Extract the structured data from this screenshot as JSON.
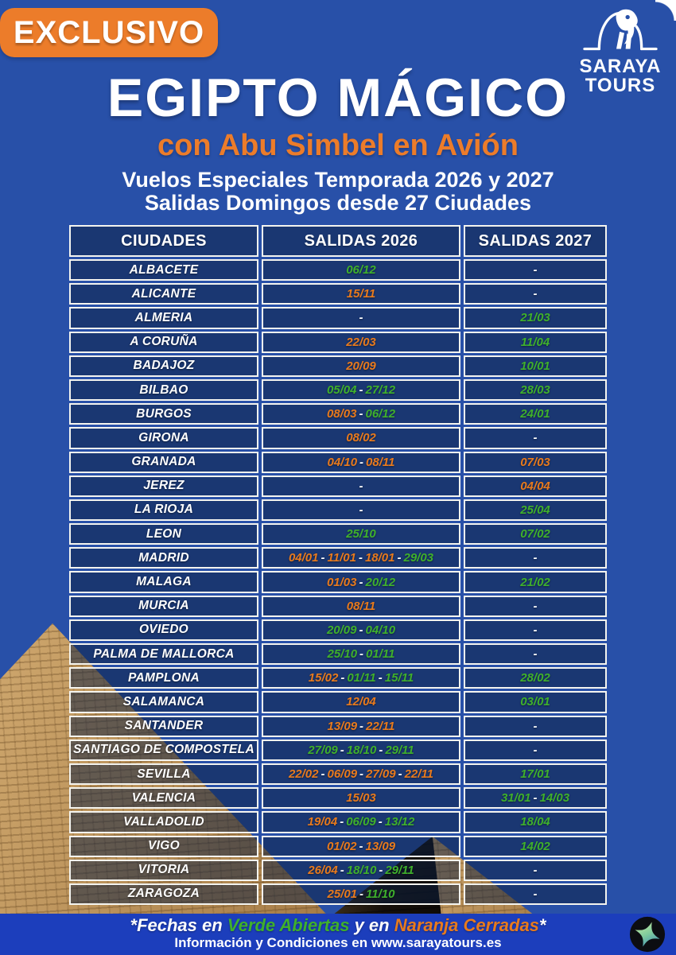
{
  "badge": {
    "label": "EXCLUSIVO"
  },
  "logo": {
    "line1": "SARAYA",
    "line2": "TOURS"
  },
  "header": {
    "title": "EGIPTO MÁGICO",
    "subtitle": "con Abu Simbel en Avión",
    "season_line": "Vuelos Especiales Temporada 2026 y 2027",
    "departures_line": "Salidas Domingos desde 27 Ciudades"
  },
  "table": {
    "columns": [
      "CIUDADES",
      "SALIDAS 2026",
      "SALIDAS 2027"
    ],
    "empty_marker": "-",
    "rows": [
      {
        "city": "ALBACETE",
        "salidas_2026": [
          {
            "date": "06/12",
            "status": "open"
          }
        ],
        "salidas_2027": []
      },
      {
        "city": "ALICANTE",
        "salidas_2026": [
          {
            "date": "15/11",
            "status": "closed"
          }
        ],
        "salidas_2027": []
      },
      {
        "city": "ALMERIA",
        "salidas_2026": [],
        "salidas_2027": [
          {
            "date": "21/03",
            "status": "open"
          }
        ]
      },
      {
        "city": "A CORUÑA",
        "salidas_2026": [
          {
            "date": "22/03",
            "status": "closed"
          }
        ],
        "salidas_2027": [
          {
            "date": "11/04",
            "status": "open"
          }
        ]
      },
      {
        "city": "BADAJOZ",
        "salidas_2026": [
          {
            "date": "20/09",
            "status": "closed"
          }
        ],
        "salidas_2027": [
          {
            "date": "10/01",
            "status": "open"
          }
        ]
      },
      {
        "city": "BILBAO",
        "salidas_2026": [
          {
            "date": "05/04",
            "status": "open"
          },
          {
            "date": "27/12",
            "status": "open"
          }
        ],
        "salidas_2027": [
          {
            "date": "28/03",
            "status": "open"
          }
        ]
      },
      {
        "city": "BURGOS",
        "salidas_2026": [
          {
            "date": "08/03",
            "status": "closed"
          },
          {
            "date": "06/12",
            "status": "open"
          }
        ],
        "salidas_2027": [
          {
            "date": "24/01",
            "status": "open"
          }
        ]
      },
      {
        "city": "GIRONA",
        "salidas_2026": [
          {
            "date": "08/02",
            "status": "closed"
          }
        ],
        "salidas_2027": []
      },
      {
        "city": "GRANADA",
        "salidas_2026": [
          {
            "date": "04/10",
            "status": "closed"
          },
          {
            "date": "08/11",
            "status": "closed"
          }
        ],
        "salidas_2027": [
          {
            "date": "07/03",
            "status": "closed"
          }
        ]
      },
      {
        "city": "JEREZ",
        "salidas_2026": [],
        "salidas_2027": [
          {
            "date": "04/04",
            "status": "closed"
          }
        ]
      },
      {
        "city": "LA RIOJA",
        "salidas_2026": [],
        "salidas_2027": [
          {
            "date": "25/04",
            "status": "open"
          }
        ]
      },
      {
        "city": "LEON",
        "salidas_2026": [
          {
            "date": "25/10",
            "status": "open"
          }
        ],
        "salidas_2027": [
          {
            "date": "07/02",
            "status": "open"
          }
        ]
      },
      {
        "city": "MADRID",
        "salidas_2026": [
          {
            "date": "04/01",
            "status": "closed"
          },
          {
            "date": "11/01",
            "status": "closed"
          },
          {
            "date": "18/01",
            "status": "closed"
          },
          {
            "date": "29/03",
            "status": "open"
          }
        ],
        "salidas_2027": []
      },
      {
        "city": "MALAGA",
        "salidas_2026": [
          {
            "date": "01/03",
            "status": "closed"
          },
          {
            "date": "20/12",
            "status": "open"
          }
        ],
        "salidas_2027": [
          {
            "date": "21/02",
            "status": "open"
          }
        ]
      },
      {
        "city": "MURCIA",
        "salidas_2026": [
          {
            "date": "08/11",
            "status": "closed"
          }
        ],
        "salidas_2027": []
      },
      {
        "city": "OVIEDO",
        "salidas_2026": [
          {
            "date": "20/09",
            "status": "open"
          },
          {
            "date": "04/10",
            "status": "open"
          }
        ],
        "salidas_2027": []
      },
      {
        "city": "PALMA DE MALLORCA",
        "salidas_2026": [
          {
            "date": "25/10",
            "status": "open"
          },
          {
            "date": "01/11",
            "status": "open"
          }
        ],
        "salidas_2027": []
      },
      {
        "city": "PAMPLONA",
        "salidas_2026": [
          {
            "date": "15/02",
            "status": "closed"
          },
          {
            "date": "01/11",
            "status": "open"
          },
          {
            "date": "15/11",
            "status": "open"
          }
        ],
        "salidas_2027": [
          {
            "date": "28/02",
            "status": "open"
          }
        ]
      },
      {
        "city": "SALAMANCA",
        "salidas_2026": [
          {
            "date": "12/04",
            "status": "closed"
          }
        ],
        "salidas_2027": [
          {
            "date": "03/01",
            "status": "open"
          }
        ]
      },
      {
        "city": "SANTANDER",
        "salidas_2026": [
          {
            "date": "13/09",
            "status": "closed"
          },
          {
            "date": "22/11",
            "status": "closed"
          }
        ],
        "salidas_2027": []
      },
      {
        "city": "SANTIAGO DE COMPOSTELA",
        "salidas_2026": [
          {
            "date": "27/09",
            "status": "open"
          },
          {
            "date": "18/10",
            "status": "open"
          },
          {
            "date": "29/11",
            "status": "open"
          }
        ],
        "salidas_2027": []
      },
      {
        "city": "SEVILLA",
        "salidas_2026": [
          {
            "date": "22/02",
            "status": "closed"
          },
          {
            "date": "06/09",
            "status": "closed"
          },
          {
            "date": "27/09",
            "status": "closed"
          },
          {
            "date": "22/11",
            "status": "closed"
          }
        ],
        "salidas_2027": [
          {
            "date": "17/01",
            "status": "open"
          }
        ]
      },
      {
        "city": "VALENCIA",
        "salidas_2026": [
          {
            "date": "15/03",
            "status": "closed"
          }
        ],
        "salidas_2027": [
          {
            "date": "31/01",
            "status": "open"
          },
          {
            "date": "14/03",
            "status": "open"
          }
        ]
      },
      {
        "city": "VALLADOLID",
        "salidas_2026": [
          {
            "date": "19/04",
            "status": "closed"
          },
          {
            "date": "06/09",
            "status": "open"
          },
          {
            "date": "13/12",
            "status": "open"
          }
        ],
        "salidas_2027": [
          {
            "date": "18/04",
            "status": "open"
          }
        ]
      },
      {
        "city": "VIGO",
        "salidas_2026": [
          {
            "date": "01/02",
            "status": "closed"
          },
          {
            "date": "13/09",
            "status": "closed"
          }
        ],
        "salidas_2027": [
          {
            "date": "14/02",
            "status": "open"
          }
        ]
      },
      {
        "city": "VITORIA",
        "salidas_2026": [
          {
            "date": "26/04",
            "status": "closed"
          },
          {
            "date": "18/10",
            "status": "open"
          },
          {
            "date": "29/11",
            "status": "open"
          }
        ],
        "salidas_2027": []
      },
      {
        "city": "ZARAGOZA",
        "salidas_2026": [
          {
            "date": "25/01",
            "status": "closed"
          },
          {
            "date": "11/10",
            "status": "open"
          }
        ],
        "salidas_2027": []
      }
    ]
  },
  "footer": {
    "legend": [
      {
        "text": "*Fechas en ",
        "color": "white"
      },
      {
        "text": "Verde Abiertas",
        "color": "open"
      },
      {
        "text": " y en ",
        "color": "white"
      },
      {
        "text": "Naranja Cerradas",
        "color": "closed"
      },
      {
        "text": "*",
        "color": "white"
      }
    ],
    "info": "Información y Condiciones en www.sarayatours.es"
  },
  "colors": {
    "open_green": "#3fb02c",
    "closed_orange": "#e87a1d",
    "accent_orange": "#ec7c2a",
    "page_blue": "#2850a8",
    "footer_blue": "#1c3ebc"
  }
}
